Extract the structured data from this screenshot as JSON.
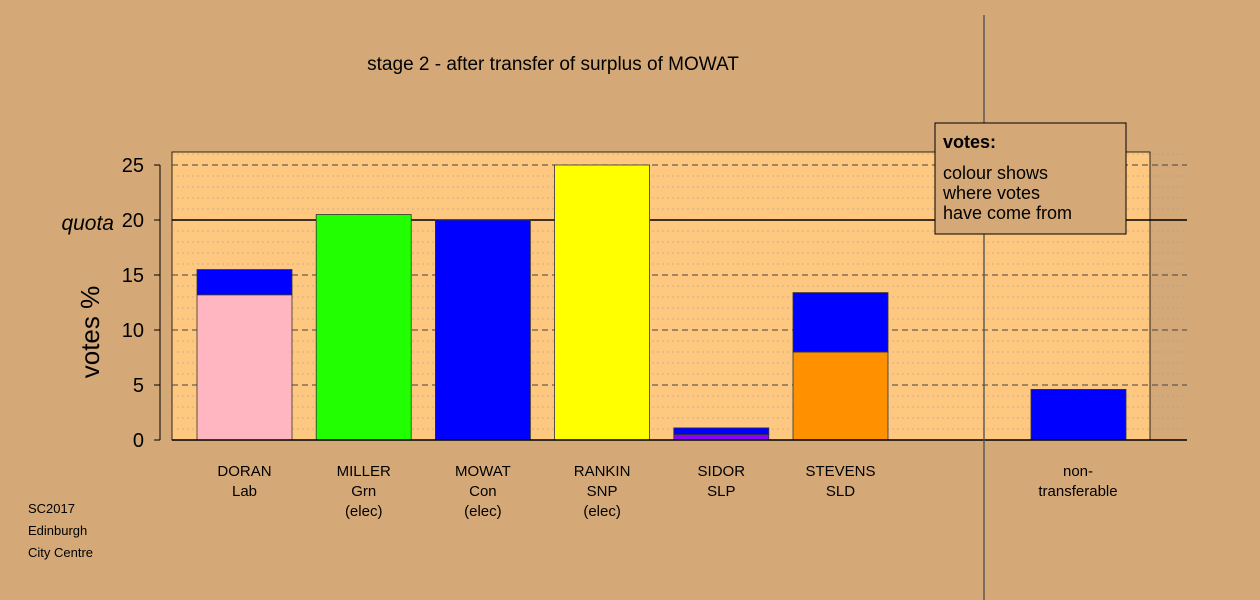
{
  "chart_data": {
    "type": "bar",
    "stacked": true,
    "title": "stage 2 - after transfer of surplus of MOWAT",
    "ylabel": "votes %",
    "ylim": [
      0,
      26
    ],
    "yticks": [
      0,
      5,
      10,
      15,
      20,
      25
    ],
    "quota": {
      "label": "quota",
      "value": 20
    },
    "grid": true,
    "categories": [
      {
        "name": "DORAN",
        "party": "Lab",
        "status": ""
      },
      {
        "name": "MILLER",
        "party": "Grn",
        "status": "(elec)"
      },
      {
        "name": "MOWAT",
        "party": "Con",
        "status": "(elec)"
      },
      {
        "name": "RANKIN",
        "party": "SNP",
        "status": "(elec)"
      },
      {
        "name": "SIDOR",
        "party": "SLP",
        "status": ""
      },
      {
        "name": "STEVENS",
        "party": "SLD",
        "status": ""
      }
    ],
    "bars": [
      {
        "segments": [
          {
            "value": 13.2,
            "color": "#ffb6c1"
          },
          {
            "value": 2.3,
            "color": "#0000ff"
          }
        ]
      },
      {
        "segments": [
          {
            "value": 20.5,
            "color": "#22ff00"
          }
        ]
      },
      {
        "segments": [
          {
            "value": 20.0,
            "color": "#0000ff"
          }
        ]
      },
      {
        "segments": [
          {
            "value": 25.0,
            "color": "#ffff00"
          }
        ]
      },
      {
        "segments": [
          {
            "value": 0.5,
            "color": "#8b00ff"
          },
          {
            "value": 0.6,
            "color": "#0000ff"
          }
        ]
      },
      {
        "segments": [
          {
            "value": 8.0,
            "color": "#ff9000"
          },
          {
            "value": 5.4,
            "color": "#0000ff"
          }
        ]
      }
    ],
    "nontransferable": {
      "label_line1": "non-",
      "label_line2": "transferable",
      "segments": [
        {
          "value": 4.6,
          "color": "#0000ff"
        }
      ]
    },
    "legend": {
      "position": "top-right",
      "title": "votes:",
      "lines": [
        "colour shows",
        "where votes",
        "have come from"
      ]
    },
    "colors": {
      "background": "#d4a977",
      "plot_background": "#ffc880"
    }
  },
  "credit": {
    "line1": "SC2017",
    "line2": "Edinburgh",
    "line3": "City Centre"
  }
}
